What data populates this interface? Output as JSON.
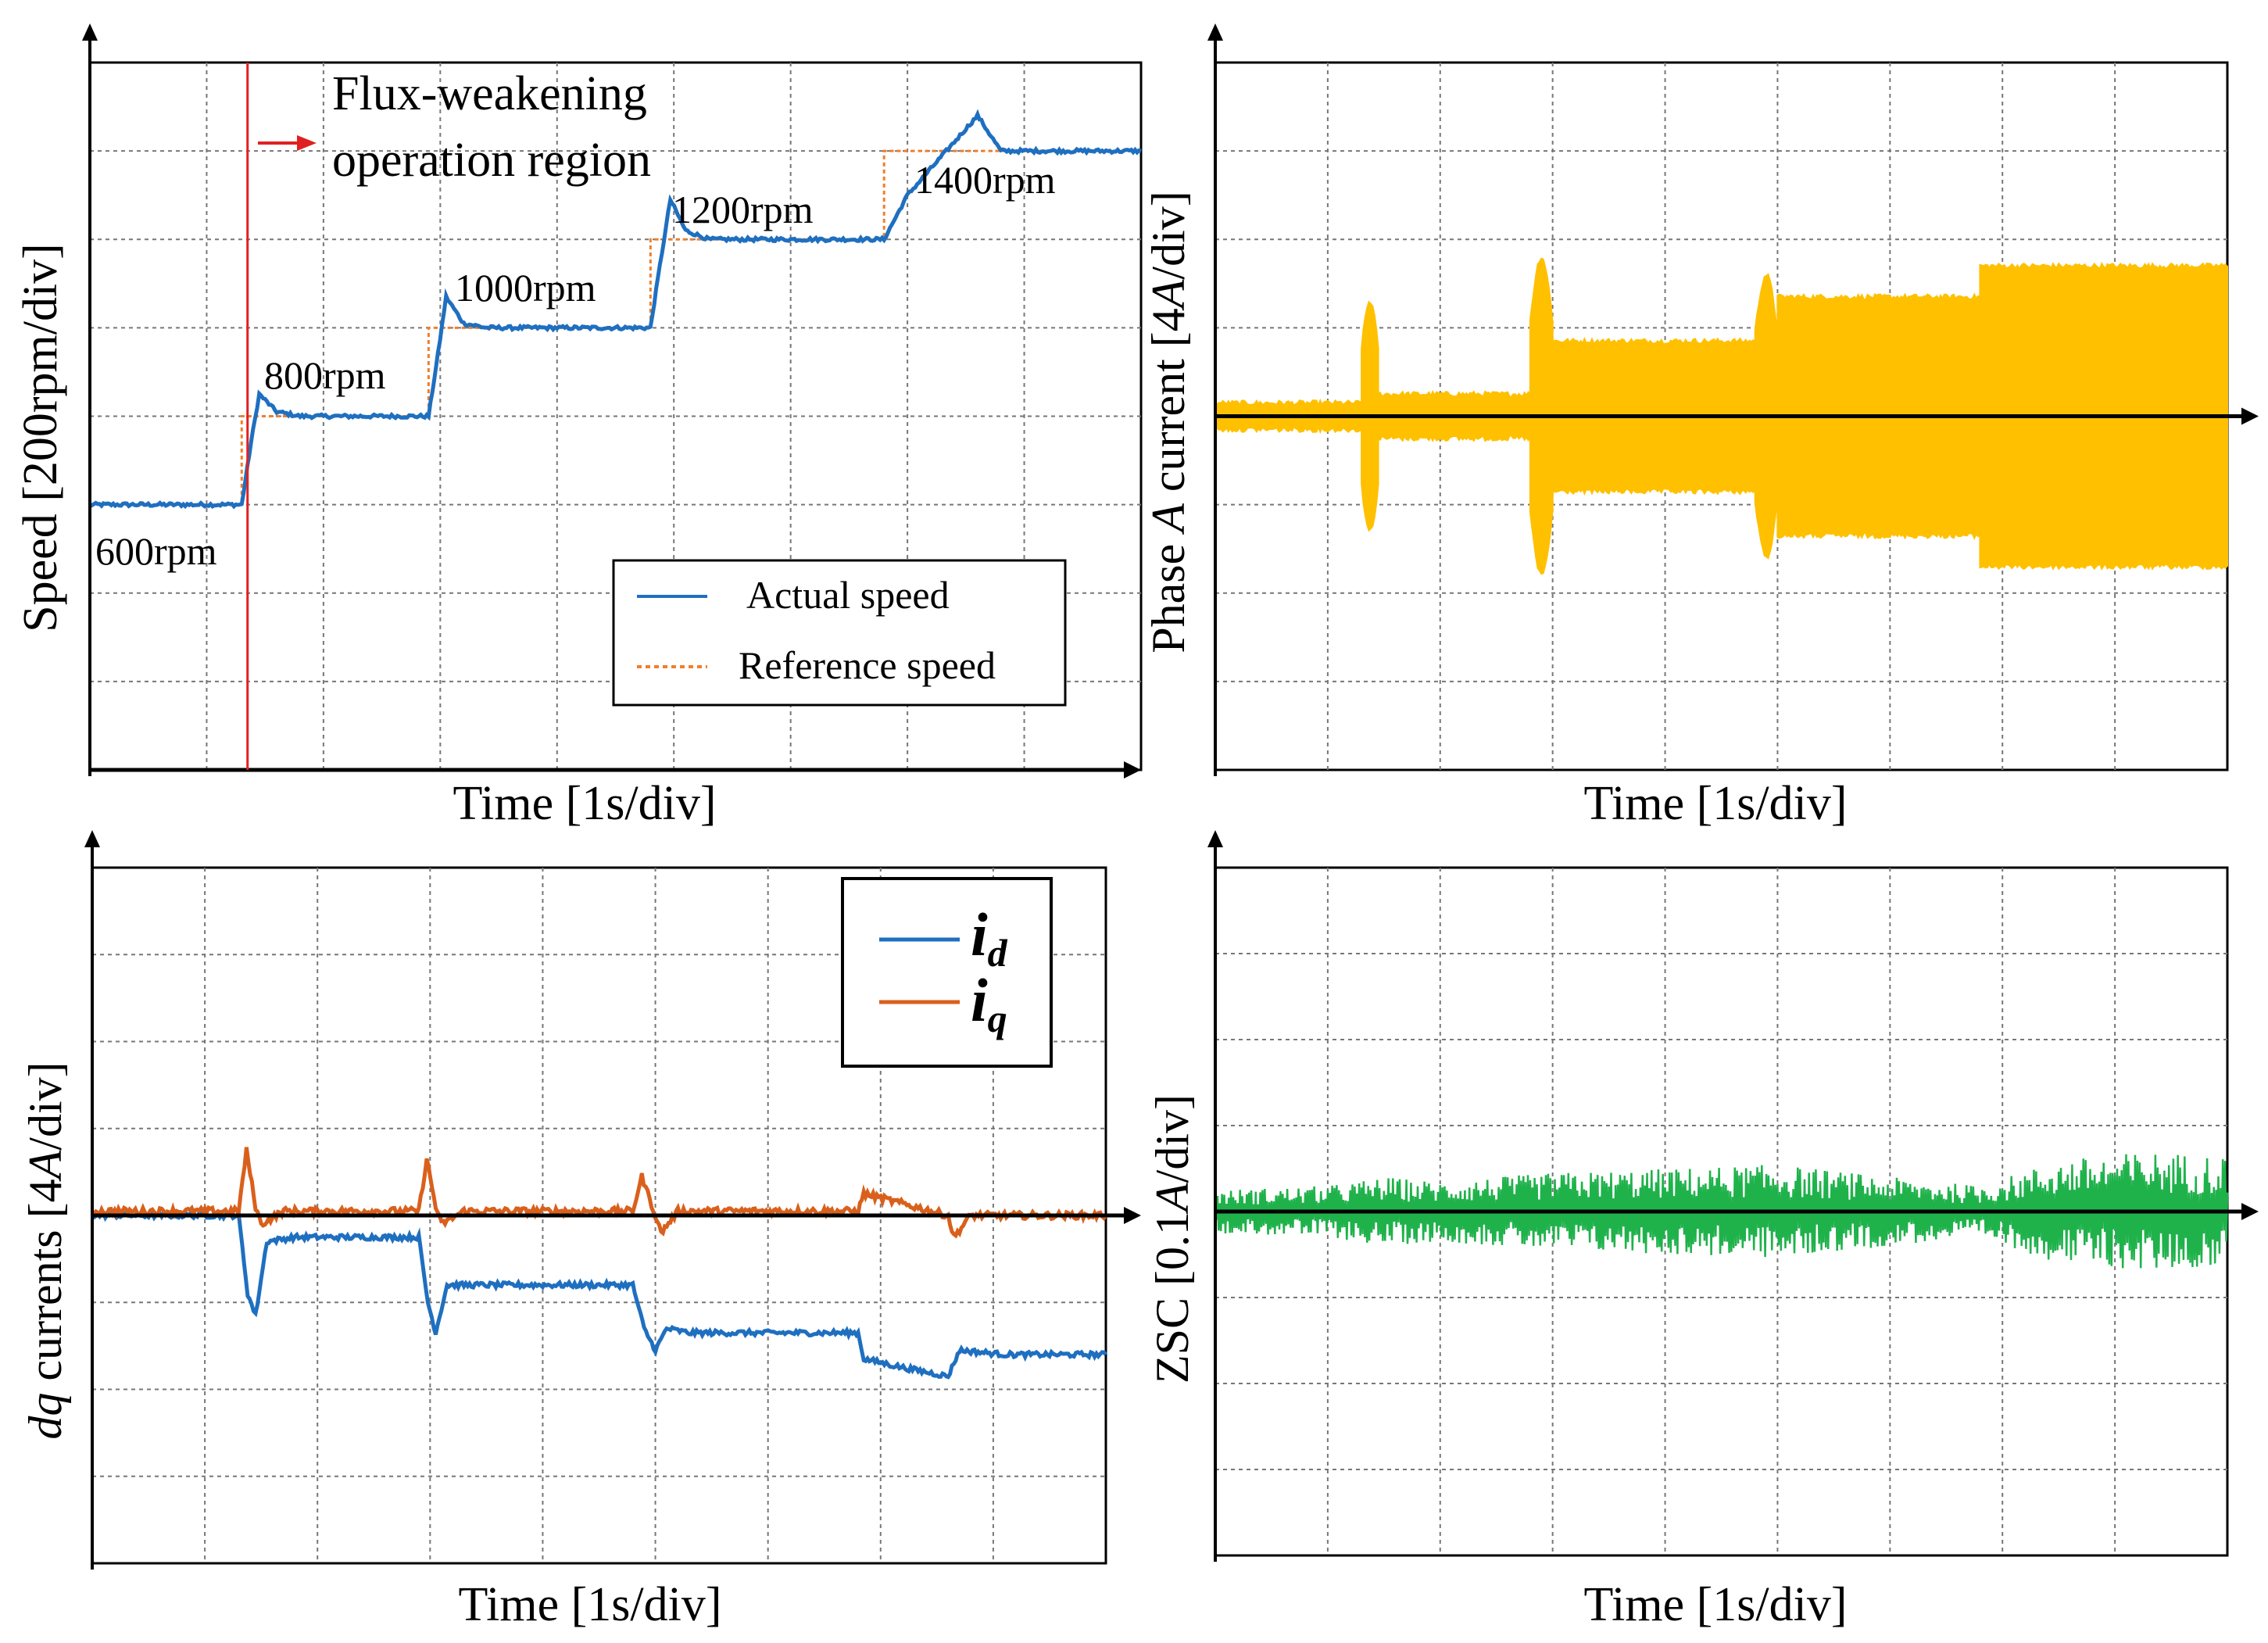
{
  "colors": {
    "blue": "#1f6fc0",
    "orange": "#f07f2a",
    "dq_orange": "#d9601c",
    "yellow": "#ffc000",
    "green": "#1fb24b",
    "flux_red": "#e02020",
    "annot_orange": "#ee7c2a"
  },
  "chart_data": [
    {
      "id": "speed",
      "type": "line",
      "xlabel": "Time [1s/div]",
      "ylabel": "Speed [200rpm/div]",
      "x_divisions": 9,
      "y_divisions": 8,
      "xlim": [
        0,
        9
      ],
      "ylim": [
        0,
        8
      ],
      "speed_annotations": [
        "600rpm",
        "800rpm",
        "1000rpm",
        "1200rpm",
        "1400rpm"
      ],
      "flux_label_line1": "Flux-weakening",
      "flux_label_line2": "operation region",
      "flux_marker_time": 1.35,
      "legend": [
        "Actual speed",
        "Reference speed"
      ],
      "series": [
        {
          "name": "Reference speed",
          "style": "dotted",
          "points": [
            [
              0,
              3
            ],
            [
              1.3,
              3
            ],
            [
              1.3,
              4
            ],
            [
              2.9,
              4
            ],
            [
              2.9,
              5
            ],
            [
              4.8,
              5
            ],
            [
              4.8,
              6
            ],
            [
              6.8,
              6
            ],
            [
              6.8,
              7
            ],
            [
              9,
              7
            ]
          ]
        },
        {
          "name": "Actual speed",
          "style": "solid",
          "points": [
            [
              0,
              3
            ],
            [
              1.3,
              3
            ],
            [
              1.38,
              3.7
            ],
            [
              1.45,
              4.25
            ],
            [
              1.6,
              4.05
            ],
            [
              1.8,
              4
            ],
            [
              2.9,
              4
            ],
            [
              2.98,
              4.7
            ],
            [
              3.05,
              5.35
            ],
            [
              3.2,
              5.05
            ],
            [
              3.4,
              5
            ],
            [
              4.8,
              5
            ],
            [
              4.88,
              5.7
            ],
            [
              4.97,
              6.45
            ],
            [
              5.1,
              6.1
            ],
            [
              5.3,
              6
            ],
            [
              6.8,
              6
            ],
            [
              7,
              6.5
            ],
            [
              7.4,
              7.1
            ],
            [
              7.6,
              7.4
            ],
            [
              7.8,
              7
            ],
            [
              8.2,
              7
            ],
            [
              9,
              7
            ]
          ]
        }
      ]
    },
    {
      "id": "phase",
      "type": "area",
      "xlabel": "Time [1s/div]",
      "ylabel_part1": "Phase ",
      "ylabel_var": "A",
      "ylabel_part2": " current [4",
      "ylabel_unit_var": "A",
      "ylabel_part3": "/div]",
      "x_divisions": 9,
      "y_divisions": 8,
      "xlim": [
        0,
        9
      ],
      "ylim": [
        -4,
        4
      ],
      "series": [
        {
          "name": "Phase A current envelope",
          "segments": [
            {
              "t0": 0,
              "t1": 1.3,
              "amp": 0.15
            },
            {
              "t0": 1.3,
              "t1": 1.45,
              "amp": 1.3
            },
            {
              "t0": 1.45,
              "t1": 2.8,
              "amp": 0.25
            },
            {
              "t0": 2.8,
              "t1": 3.0,
              "amp": 1.8
            },
            {
              "t0": 3.0,
              "t1": 4.8,
              "amp": 0.85
            },
            {
              "t0": 4.8,
              "t1": 5.0,
              "amp": 1.6
            },
            {
              "t0": 5.0,
              "t1": 6.8,
              "amp": 1.35
            },
            {
              "t0": 6.8,
              "t1": 9.0,
              "amp": 1.7
            }
          ]
        }
      ]
    },
    {
      "id": "dq",
      "type": "line",
      "xlabel": "Time [1s/div]",
      "ylabel_var": "dq",
      "ylabel_part1": " currents [4",
      "ylabel_unit_var": "A",
      "ylabel_part2": "/div]",
      "x_divisions": 9,
      "y_divisions": 8,
      "xlim": [
        0,
        9
      ],
      "ylim": [
        -4,
        4
      ],
      "legend_sym": "i",
      "legend_sub": [
        "d",
        "q"
      ],
      "series": [
        {
          "name": "i_d",
          "points": [
            [
              0,
              0
            ],
            [
              1.3,
              0
            ],
            [
              1.38,
              -0.9
            ],
            [
              1.45,
              -1.15
            ],
            [
              1.55,
              -0.3
            ],
            [
              1.8,
              -0.25
            ],
            [
              2.9,
              -0.25
            ],
            [
              2.98,
              -1.0
            ],
            [
              3.05,
              -1.35
            ],
            [
              3.15,
              -0.8
            ],
            [
              3.4,
              -0.8
            ],
            [
              4.8,
              -0.8
            ],
            [
              4.9,
              -1.3
            ],
            [
              5.0,
              -1.55
            ],
            [
              5.1,
              -1.3
            ],
            [
              5.3,
              -1.35
            ],
            [
              6.8,
              -1.35
            ],
            [
              6.85,
              -1.65
            ],
            [
              7.2,
              -1.75
            ],
            [
              7.6,
              -1.85
            ],
            [
              7.7,
              -1.55
            ],
            [
              8.1,
              -1.6
            ],
            [
              9,
              -1.6
            ]
          ]
        },
        {
          "name": "i_q",
          "points": [
            [
              0,
              0.05
            ],
            [
              1.3,
              0.05
            ],
            [
              1.37,
              0.75
            ],
            [
              1.45,
              0.1
            ],
            [
              1.5,
              -0.1
            ],
            [
              1.7,
              0.05
            ],
            [
              2.9,
              0.05
            ],
            [
              2.97,
              0.65
            ],
            [
              3.05,
              0.1
            ],
            [
              3.1,
              -0.1
            ],
            [
              3.3,
              0.05
            ],
            [
              4.8,
              0.05
            ],
            [
              4.88,
              0.45
            ],
            [
              5.0,
              0.0
            ],
            [
              5.05,
              -0.2
            ],
            [
              5.2,
              0.05
            ],
            [
              6.8,
              0.05
            ],
            [
              6.85,
              0.25
            ],
            [
              7.6,
              0.0
            ],
            [
              7.65,
              -0.25
            ],
            [
              7.8,
              0.0
            ],
            [
              9,
              0.0
            ]
          ]
        }
      ]
    },
    {
      "id": "zsc",
      "type": "area",
      "xlabel": "Time [1s/div]",
      "ylabel_part1": "ZSC [0.1",
      "ylabel_var": "A",
      "ylabel_part2": "/div]",
      "x_divisions": 9,
      "y_divisions": 8,
      "xlim": [
        0,
        9
      ],
      "ylim": [
        -4,
        4
      ],
      "series": [
        {
          "name": "ZSC envelope",
          "points": [
            [
              0,
              0.25
            ],
            [
              1.0,
              0.3
            ],
            [
              1.5,
              0.4
            ],
            [
              2.0,
              0.35
            ],
            [
              3.0,
              0.45
            ],
            [
              4.0,
              0.5
            ],
            [
              5.0,
              0.55
            ],
            [
              6.0,
              0.4
            ],
            [
              6.8,
              0.3
            ],
            [
              7.5,
              0.6
            ],
            [
              8.3,
              0.7
            ],
            [
              9.0,
              0.65
            ]
          ]
        }
      ]
    }
  ]
}
